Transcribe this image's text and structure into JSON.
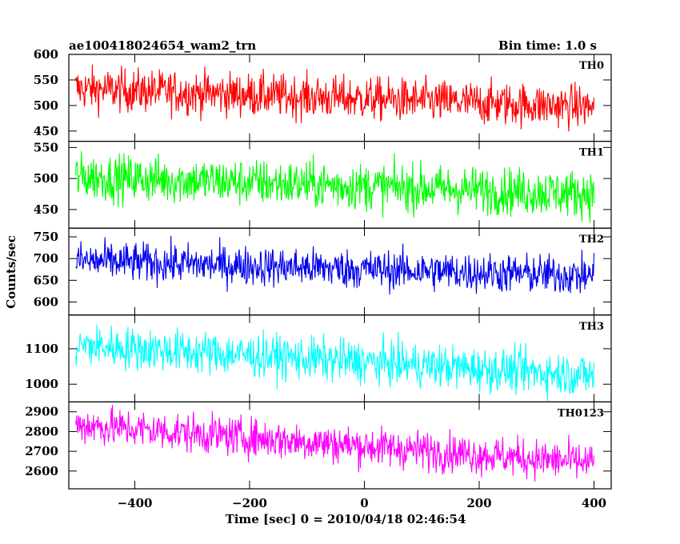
{
  "header": {
    "left": "ae100418024654_wam2_trn",
    "right": "Bin time: 1.0 s"
  },
  "chart_data": {
    "type": "line",
    "title": "ae100418024654_wam2_trn",
    "bin_time_label": "Bin time: 1.0 s",
    "xlabel": "Time [sec] 0 = 2010/04/18 02:46:54",
    "ylabel": "Counts/sec",
    "xlim": [
      -515,
      430
    ],
    "x_range": [
      -503,
      400
    ],
    "x_step": 1,
    "x_ticks": [
      -400,
      -200,
      0,
      200,
      400
    ],
    "grid": false,
    "panels": [
      {
        "name": "TH0",
        "color": "#ff0000",
        "ylim": [
          430,
          600
        ],
        "y_ticks": [
          450,
          500,
          550,
          600
        ],
        "trend_start": 533,
        "trend_end": 497,
        "noise_amplitude": 28
      },
      {
        "name": "TH1",
        "color": "#00ff00",
        "ylim": [
          420,
          560
        ],
        "y_ticks": [
          450,
          500,
          550
        ],
        "trend_start": 503,
        "trend_end": 475,
        "noise_amplitude": 25
      },
      {
        "name": "TH2",
        "color": "#0000ee",
        "ylim": [
          570,
          770
        ],
        "y_ticks": [
          600,
          650,
          700,
          750
        ],
        "trend_start": 695,
        "trend_end": 660,
        "noise_amplitude": 30
      },
      {
        "name": "TH3",
        "color": "#00ffff",
        "ylim": [
          950,
          1195
        ],
        "y_ticks": [
          1000,
          1100
        ],
        "trend_start": 1110,
        "trend_end": 1025,
        "noise_amplitude": 40
      },
      {
        "name": "TH0123",
        "color": "#ff00ff",
        "ylim": [
          2510,
          2950
        ],
        "y_ticks": [
          2600,
          2700,
          2800,
          2900
        ],
        "trend_start": 2835,
        "trend_end": 2640,
        "noise_amplitude": 65
      }
    ]
  }
}
